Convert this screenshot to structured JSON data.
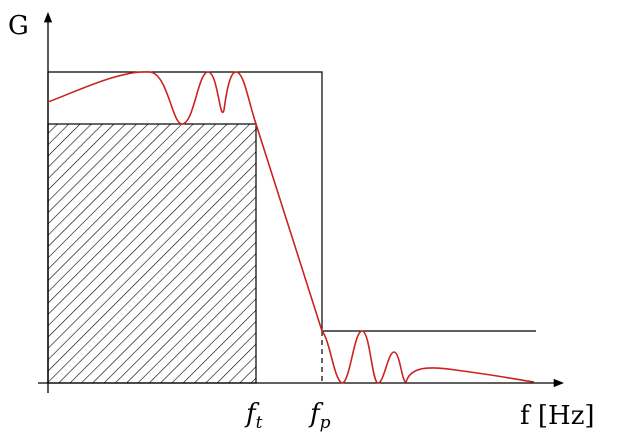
{
  "axes": {
    "y_label": "G",
    "x_label": "f [Hz]"
  },
  "markers": {
    "f_t": {
      "base": "f",
      "sub": "t"
    },
    "f_p": {
      "base": "f",
      "sub": "p"
    }
  },
  "colors": {
    "response": "#cc2222",
    "lines": "#000000",
    "hatch": "#000000"
  }
}
